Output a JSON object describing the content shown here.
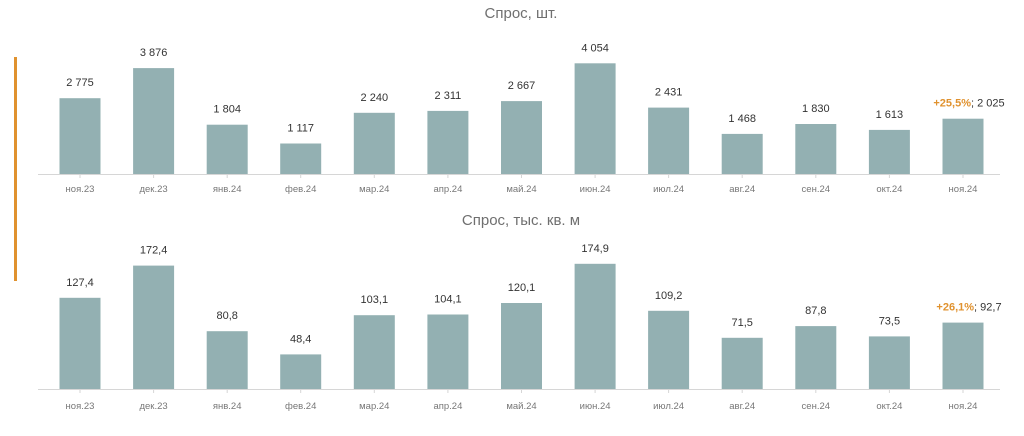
{
  "colors": {
    "bar": "#93b0b2",
    "accent": "#e0922f",
    "text": "#333333",
    "axis": "#d6d6d6"
  },
  "chart_data": [
    {
      "type": "bar",
      "title": "Спрос, шт.",
      "categories": [
        "ноя.23",
        "дек.23",
        "янв.24",
        "фев.24",
        "мар.24",
        "апр.24",
        "май.24",
        "июн.24",
        "июл.24",
        "авг.24",
        "сен.24",
        "окт.24",
        "ноя.24"
      ],
      "values": [
        2775,
        3876,
        1804,
        1117,
        2240,
        2311,
        2667,
        4054,
        2431,
        1468,
        1830,
        1613,
        2025
      ],
      "value_labels": [
        "2 775",
        "3 876",
        "1 804",
        "1 117",
        "2 240",
        "2 311",
        "2 667",
        "4 054",
        "2 431",
        "1 468",
        "1 830",
        "1 613",
        "2 025"
      ],
      "growth_label": "+25,5%",
      "ylim": [
        0,
        4100
      ],
      "grid": false,
      "legend": "none"
    },
    {
      "type": "bar",
      "title": "Спрос, тыс. кв. м",
      "categories": [
        "ноя.23",
        "дек.23",
        "янв.24",
        "фев.24",
        "мар.24",
        "апр.24",
        "май.24",
        "июн.24",
        "июл.24",
        "авг.24",
        "сен.24",
        "окт.24",
        "ноя.24"
      ],
      "values": [
        127.4,
        172.4,
        80.8,
        48.4,
        103.1,
        104.1,
        120.1,
        174.9,
        109.2,
        71.5,
        87.8,
        73.5,
        92.7
      ],
      "value_labels": [
        "127,4",
        "172,4",
        "80,8",
        "48,4",
        "103,1",
        "104,1",
        "120,1",
        "174,9",
        "109,2",
        "71,5",
        "87,8",
        "73,5",
        "92,7"
      ],
      "growth_label": "+26,1%",
      "ylim": [
        0,
        176
      ],
      "grid": false,
      "legend": "none"
    }
  ]
}
